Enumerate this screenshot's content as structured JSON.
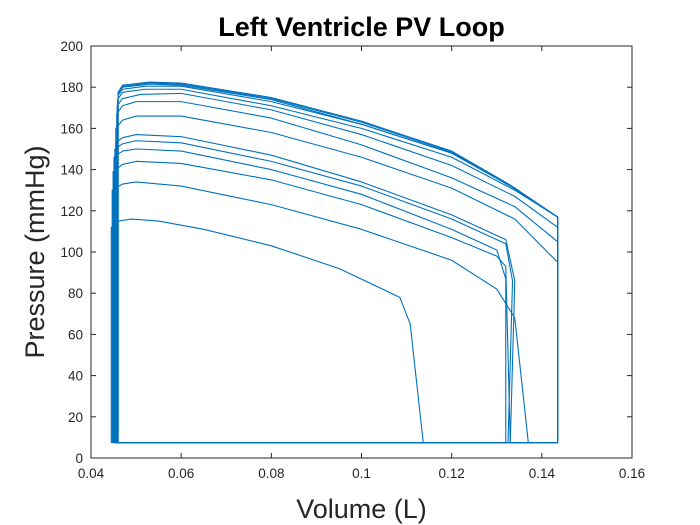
{
  "chart_data": {
    "type": "line",
    "title": "Left Ventricle PV Loop",
    "xlabel": "Volume (L)",
    "ylabel": "Pressure (mmHg)",
    "xlim": [
      0.04,
      0.16
    ],
    "ylim": [
      0,
      200
    ],
    "xticks": [
      "0.04",
      "0.06",
      "0.08",
      "0.1",
      "0.12",
      "0.14",
      "0.16"
    ],
    "yticks": [
      "0",
      "20",
      "40",
      "60",
      "80",
      "100",
      "120",
      "140",
      "160",
      "180",
      "200"
    ],
    "grid": false,
    "line_color": "#0072BD",
    "series": [
      {
        "x": [
          0.1137,
          0.0445,
          0.0445,
          0.046,
          0.049,
          0.055,
          0.065,
          0.08,
          0.095,
          0.1085,
          0.1108,
          0.1137
        ],
        "y": [
          7.5,
          7.5,
          112,
          115,
          116,
          115,
          111,
          103,
          92,
          78,
          65,
          7.5
        ]
      },
      {
        "x": [
          0.137,
          0.0447,
          0.0447,
          0.047,
          0.05,
          0.06,
          0.08,
          0.1,
          0.12,
          0.13,
          0.134,
          0.137
        ],
        "y": [
          7.5,
          7.5,
          130,
          133,
          134,
          132,
          123,
          111,
          96,
          82,
          68,
          7.5
        ]
      },
      {
        "x": [
          0.133,
          0.0449,
          0.0449,
          0.047,
          0.05,
          0.06,
          0.08,
          0.1,
          0.12,
          0.13,
          0.132,
          0.133
        ],
        "y": [
          7.5,
          7.5,
          139,
          142.5,
          144,
          143,
          135,
          123,
          107,
          98,
          93,
          7.5
        ]
      },
      {
        "x": [
          0.132,
          0.0451,
          0.0451,
          0.047,
          0.05,
          0.06,
          0.08,
          0.1,
          0.12,
          0.13,
          0.132,
          0.132
        ],
        "y": [
          7.5,
          7.5,
          146,
          149,
          150,
          149,
          140,
          128,
          111,
          101,
          87,
          7.5
        ]
      },
      {
        "x": [
          0.1325,
          0.0453,
          0.0453,
          0.047,
          0.05,
          0.06,
          0.08,
          0.1,
          0.12,
          0.132,
          0.1335,
          0.1325
        ],
        "y": [
          7.5,
          7.5,
          150,
          152.5,
          154,
          153,
          144,
          132,
          116,
          104,
          86,
          7.5
        ]
      },
      {
        "x": [
          0.133,
          0.0455,
          0.0455,
          0.047,
          0.05,
          0.06,
          0.08,
          0.1,
          0.12,
          0.132,
          0.134,
          0.133
        ],
        "y": [
          7.5,
          7.5,
          153,
          155.5,
          157,
          156,
          147,
          134,
          118,
          106,
          86,
          7.5
        ]
      },
      {
        "x": [
          0.1435,
          0.0455,
          0.0455,
          0.047,
          0.05,
          0.06,
          0.08,
          0.1,
          0.12,
          0.134,
          0.1435,
          0.1435
        ],
        "y": [
          7.5,
          7.5,
          160,
          164,
          166,
          166,
          158,
          146,
          131,
          116,
          95,
          7.5
        ]
      },
      {
        "x": [
          0.1435,
          0.0457,
          0.0457,
          0.047,
          0.05,
          0.06,
          0.08,
          0.1,
          0.12,
          0.134,
          0.1435,
          0.1435
        ],
        "y": [
          7.5,
          7.5,
          167,
          171,
          173,
          173,
          165,
          152,
          136,
          122,
          105,
          7.5
        ]
      },
      {
        "x": [
          0.1435,
          0.0458,
          0.0458,
          0.047,
          0.051,
          0.06,
          0.08,
          0.1,
          0.12,
          0.134,
          0.1435,
          0.1435
        ],
        "y": [
          7.5,
          7.5,
          171,
          174.5,
          176.5,
          177,
          169,
          157,
          142,
          127,
          112,
          7.5
        ]
      },
      {
        "x": [
          0.1435,
          0.0459,
          0.0459,
          0.047,
          0.052,
          0.06,
          0.08,
          0.1,
          0.12,
          0.134,
          0.1435,
          0.1435
        ],
        "y": [
          7.5,
          7.5,
          174,
          177.5,
          179,
          179,
          171,
          160,
          146,
          130,
          117,
          7.5
        ]
      },
      {
        "x": [
          0.1435,
          0.046,
          0.046,
          0.047,
          0.052,
          0.06,
          0.08,
          0.1,
          0.12,
          0.134,
          0.1435,
          0.1435
        ],
        "y": [
          7.5,
          7.5,
          176,
          179,
          180.5,
          180.5,
          173,
          162,
          148,
          131,
          117,
          7.5
        ]
      },
      {
        "x": [
          0.1435,
          0.046,
          0.046,
          0.047,
          0.053,
          0.06,
          0.08,
          0.1,
          0.12,
          0.133,
          0.1435,
          0.1435
        ],
        "y": [
          7.5,
          7.5,
          177,
          180,
          181.5,
          181,
          174,
          162,
          148,
          132,
          117,
          7.5
        ]
      },
      {
        "x": [
          0.1435,
          0.046,
          0.046,
          0.047,
          0.053,
          0.06,
          0.08,
          0.1,
          0.12,
          0.133,
          0.1435,
          0.1435
        ],
        "y": [
          7.5,
          7.5,
          177,
          180.5,
          182,
          181.5,
          174.5,
          163,
          148.5,
          132,
          117,
          7.5
        ]
      },
      {
        "x": [
          0.1435,
          0.046,
          0.046,
          0.047,
          0.053,
          0.06,
          0.08,
          0.1,
          0.12,
          0.133,
          0.1435,
          0.1435
        ],
        "y": [
          7.5,
          7.5,
          177.5,
          181,
          182.5,
          182,
          175,
          163.5,
          149,
          132.5,
          117,
          7.5
        ]
      }
    ]
  }
}
